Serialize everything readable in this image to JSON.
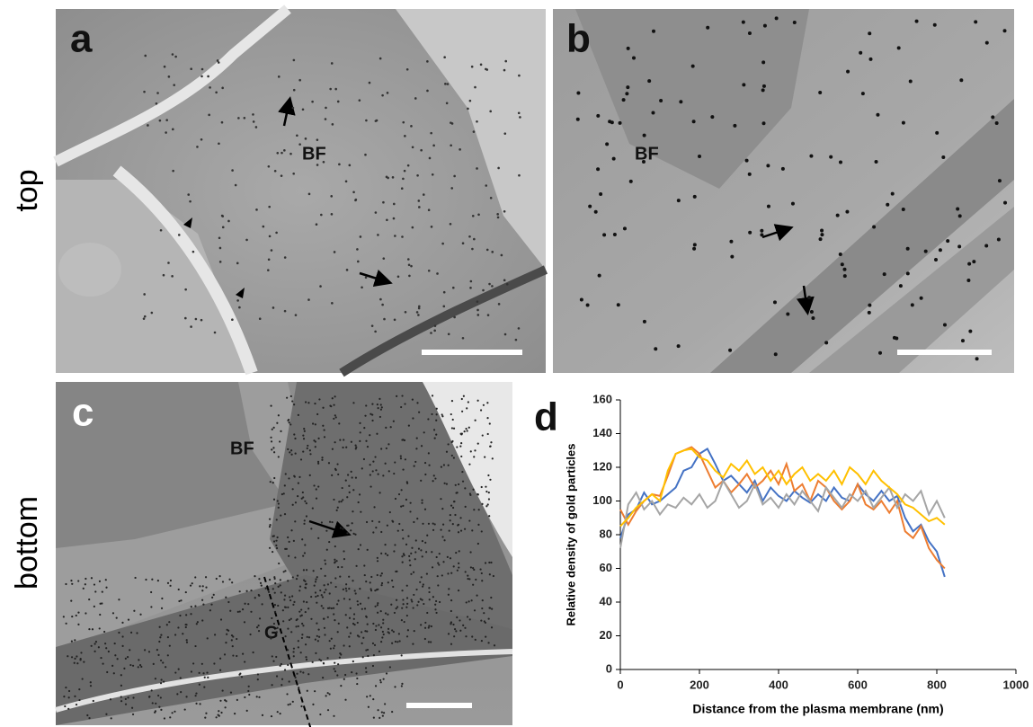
{
  "row_labels": [
    "top",
    "bottom"
  ],
  "panels": {
    "a": {
      "label": "a",
      "annotations": [
        "BF"
      ]
    },
    "b": {
      "label": "b",
      "annotations": [
        "BF"
      ]
    },
    "c": {
      "label": "c",
      "annotations": [
        "BF",
        "G"
      ]
    },
    "d": {
      "label": "d"
    }
  },
  "chart_data": {
    "type": "line",
    "x_label": "Distance from the plasma membrane (nm)",
    "y_label": "Relative density of gold particles",
    "x": [
      0,
      20,
      40,
      60,
      80,
      100,
      120,
      140,
      160,
      180,
      200,
      220,
      240,
      260,
      280,
      300,
      320,
      340,
      360,
      380,
      400,
      420,
      440,
      460,
      480,
      500,
      520,
      540,
      560,
      580,
      600,
      620,
      640,
      660,
      680,
      700,
      720,
      740,
      760,
      780,
      800,
      820
    ],
    "series": [
      {
        "color": "#4472c4",
        "values": [
          78,
          92,
          95,
          105,
          98,
          100,
          104,
          108,
          118,
          120,
          128,
          131,
          122,
          112,
          115,
          110,
          105,
          112,
          100,
          108,
          103,
          100,
          106,
          102,
          99,
          104,
          100,
          108,
          102,
          100,
          110,
          104,
          100,
          106,
          100,
          103,
          90,
          82,
          86,
          76,
          70,
          55
        ]
      },
      {
        "color": "#ed7d31",
        "values": [
          95,
          86,
          94,
          100,
          104,
          103,
          115,
          128,
          130,
          132,
          128,
          118,
          108,
          112,
          105,
          110,
          116,
          108,
          112,
          118,
          110,
          122,
          106,
          110,
          100,
          112,
          108,
          100,
          95,
          100,
          110,
          98,
          95,
          100,
          93,
          100,
          82,
          78,
          85,
          72,
          65,
          60
        ]
      },
      {
        "color": "#a5a5a5",
        "values": [
          72,
          98,
          105,
          95,
          100,
          92,
          98,
          96,
          102,
          98,
          104,
          96,
          100,
          112,
          104,
          96,
          100,
          110,
          98,
          102,
          96,
          104,
          98,
          106,
          100,
          94,
          108,
          102,
          96,
          104,
          100,
          106,
          96,
          102,
          108,
          96,
          104,
          100,
          106,
          92,
          100,
          90
        ]
      },
      {
        "color": "#ffc000",
        "values": [
          85,
          90,
          96,
          100,
          104,
          100,
          118,
          128,
          130,
          131,
          126,
          124,
          118,
          114,
          122,
          118,
          124,
          116,
          120,
          112,
          118,
          110,
          116,
          120,
          112,
          116,
          112,
          118,
          110,
          120,
          116,
          110,
          118,
          112,
          108,
          104,
          98,
          96,
          92,
          88,
          90,
          86
        ]
      }
    ],
    "xlim": [
      0,
      1000
    ],
    "xticks": [
      0,
      200,
      400,
      600,
      800,
      1000
    ],
    "ylim": [
      0,
      160
    ],
    "yticks": [
      0,
      20,
      40,
      60,
      80,
      100,
      120,
      140,
      160
    ]
  }
}
